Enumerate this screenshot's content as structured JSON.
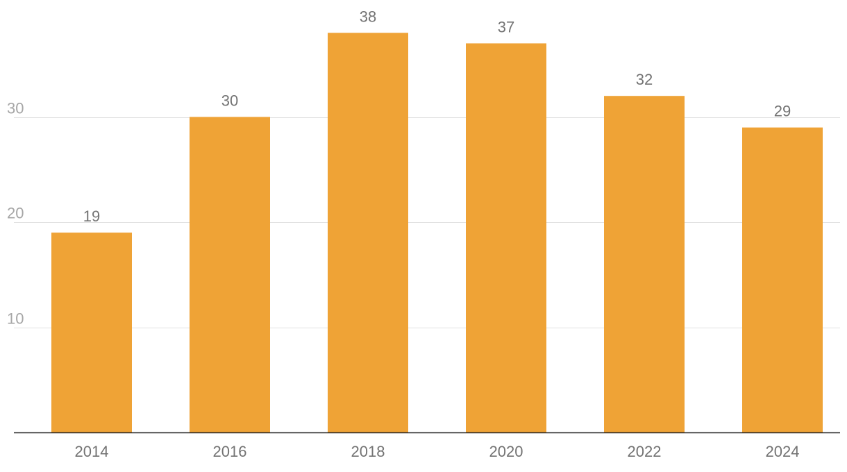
{
  "chart_data": {
    "type": "bar",
    "title": "",
    "xlabel": "",
    "ylabel": "",
    "categories": [
      "2014",
      "2016",
      "2018",
      "2020",
      "2022",
      "2024"
    ],
    "values": [
      19,
      30,
      38,
      37,
      32,
      29
    ],
    "value_labels": [
      "19",
      "30",
      "38",
      "37",
      "32",
      "29"
    ],
    "ylim": [
      0,
      40
    ],
    "yticks": [
      10,
      20,
      30
    ],
    "ytick_labels": [
      "10",
      "20",
      "30"
    ],
    "grid": "horizontal",
    "legend": "none",
    "colors": {
      "bar": "#efa336",
      "grid": "#e0e0e0",
      "baseline": "#222222",
      "tick_text": "#737373",
      "ytick_text": "#a6a6a6"
    }
  }
}
